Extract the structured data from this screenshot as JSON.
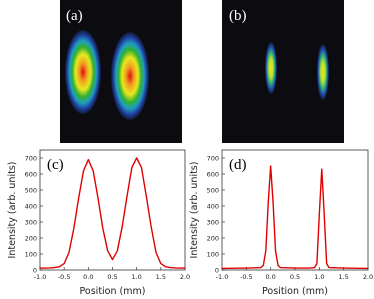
{
  "images": [
    {
      "label": "(a)"
    },
    {
      "label": "(b)"
    }
  ],
  "chart_data": [
    {
      "type": "line",
      "label": "(c)",
      "xlabel": "Position (mm)",
      "ylabel": "Intensity (arb. units)",
      "color": "#e00000",
      "x": [
        -1,
        -0.9,
        -0.8,
        -0.7,
        -0.6,
        -0.5,
        -0.4,
        -0.3,
        -0.2,
        -0.1,
        0,
        0.1,
        0.2,
        0.3,
        0.4,
        0.5,
        0.6,
        0.7,
        0.8,
        0.9,
        1.0,
        1.1,
        1.2,
        1.3,
        1.4,
        1.5,
        1.6,
        1.7,
        1.8,
        1.9,
        2.0
      ],
      "values": [
        12,
        12,
        13,
        15,
        20,
        40,
        110,
        260,
        450,
        620,
        690,
        620,
        450,
        260,
        120,
        65,
        120,
        270,
        460,
        640,
        700,
        640,
        460,
        270,
        110,
        40,
        20,
        15,
        13,
        12,
        12
      ],
      "xlim": [
        -1,
        2
      ],
      "xticks": [
        {
          "value": -1,
          "label": "-1.0"
        },
        -0.5,
        {
          "value": 0,
          "label": "0.0"
        },
        0.5,
        {
          "value": 1,
          "label": "1.0"
        },
        1.5,
        {
          "value": 2,
          "label": "2.0"
        }
      ],
      "ylim": [
        0,
        750
      ],
      "yticks": [
        0,
        100,
        200,
        300,
        400,
        500,
        600,
        700
      ]
    },
    {
      "type": "line",
      "label": "(d)",
      "xlabel": "Position (mm)",
      "ylabel": "Intensity (arb. units)",
      "color": "#e00000",
      "x": [
        -1,
        -0.5,
        -0.2,
        -0.15,
        -0.1,
        -0.05,
        0,
        0.05,
        0.1,
        0.15,
        0.2,
        0.5,
        0.8,
        0.9,
        0.95,
        1.0,
        1.05,
        1.1,
        1.15,
        1.2,
        1.5,
        2.0
      ],
      "values": [
        10,
        12,
        15,
        30,
        120,
        420,
        650,
        420,
        120,
        30,
        15,
        12,
        12,
        15,
        40,
        350,
        630,
        350,
        40,
        15,
        12,
        10
      ],
      "xlim": [
        -1,
        2
      ],
      "xticks": [
        {
          "value": -1,
          "label": "-1.0"
        },
        -0.5,
        {
          "value": 0,
          "label": "0.0"
        },
        0.5,
        {
          "value": 1,
          "label": "1.0"
        },
        1.5,
        {
          "value": 2,
          "label": "2.0"
        }
      ],
      "ylim": [
        0,
        750
      ],
      "yticks": [
        0,
        100,
        200,
        300,
        400,
        500,
        600,
        700
      ]
    }
  ]
}
